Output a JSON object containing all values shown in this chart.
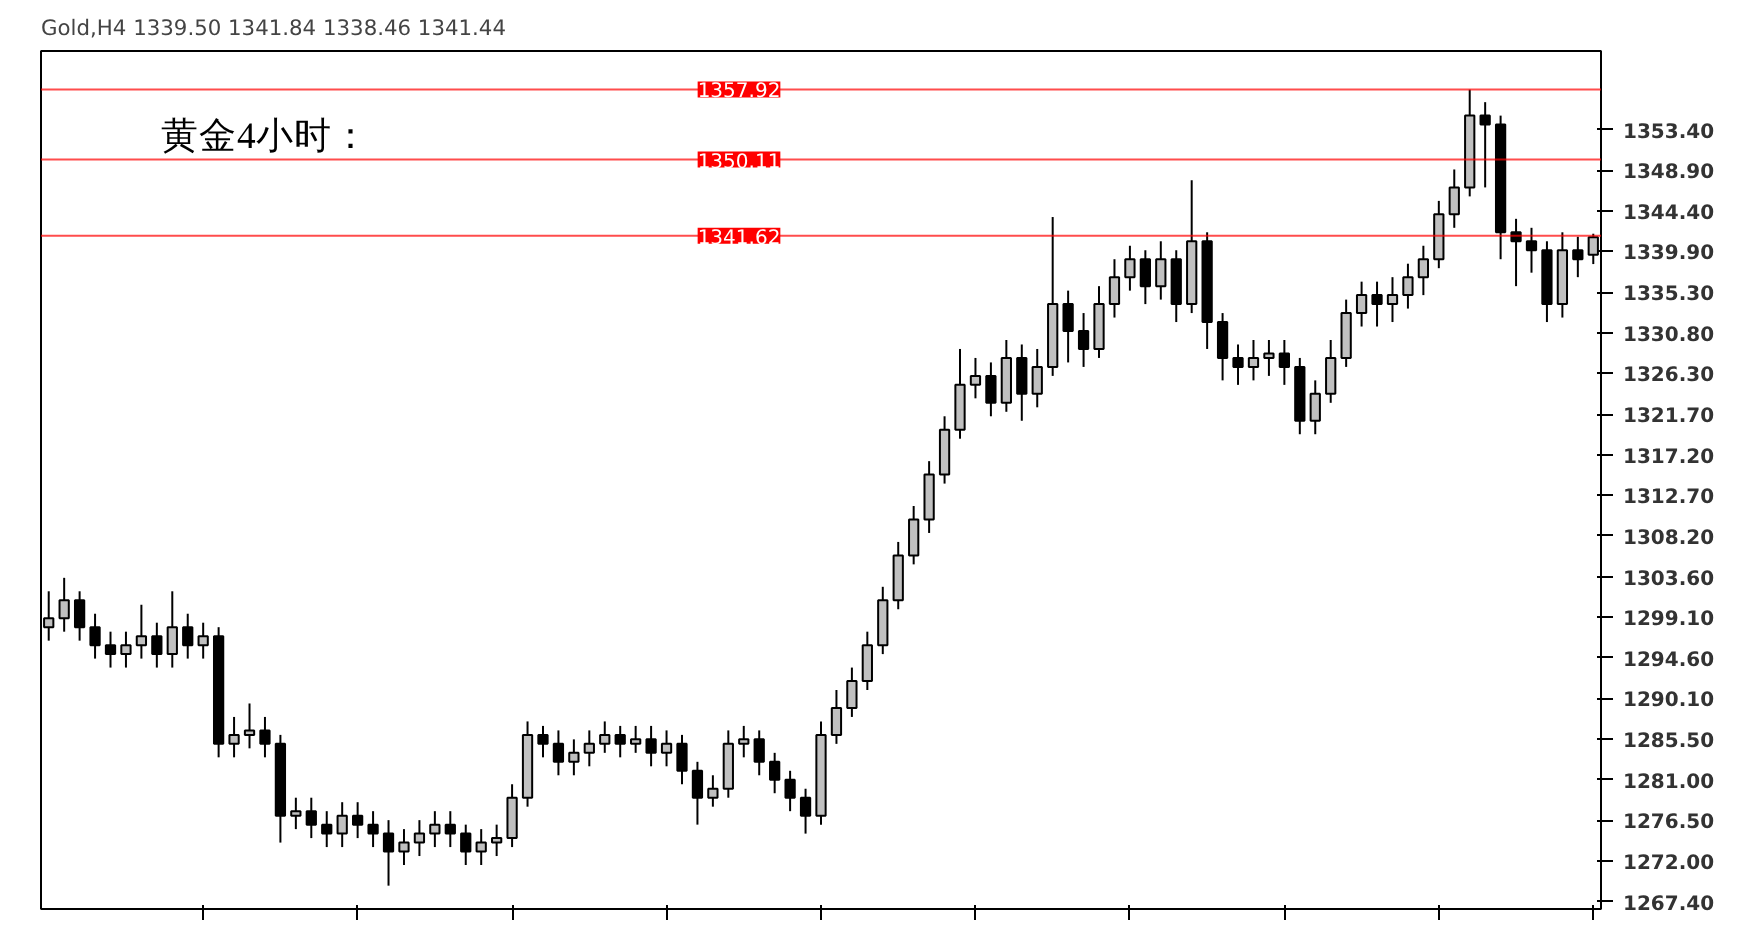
{
  "chart_data": {
    "type": "candlestick",
    "title": "Gold,H4  1339.50 1341.84 1338.46 1341.44",
    "annotations": [
      "黄金4小时："
    ],
    "categories": [
      null,
      null,
      null,
      null,
      null,
      null,
      null,
      null,
      null,
      null,
      null,
      null,
      null,
      null,
      null,
      null,
      null,
      null,
      null,
      null,
      null,
      null,
      null,
      null,
      null,
      null,
      null,
      null,
      null,
      null,
      null,
      null,
      null,
      null,
      null,
      null,
      null,
      null,
      null,
      null,
      null,
      null,
      null,
      null,
      null,
      null,
      null,
      null,
      null,
      null,
      null,
      null,
      null,
      null,
      null,
      null,
      null,
      null,
      null,
      null,
      null,
      null,
      null,
      null,
      null,
      null,
      null,
      null,
      null,
      null,
      null,
      null,
      null,
      null,
      null,
      null,
      null,
      null,
      null,
      null,
      null,
      null,
      null,
      null,
      null,
      null,
      null,
      null,
      null,
      null,
      null,
      null,
      null,
      null,
      null,
      null,
      null,
      null,
      null,
      null,
      null
    ],
    "ohlc": [
      [
        1298,
        1302,
        1296.5,
        1299
      ],
      [
        1299,
        1303.5,
        1297.5,
        1301
      ],
      [
        1301,
        1302,
        1296.5,
        1298
      ],
      [
        1298,
        1299.5,
        1294.5,
        1296
      ],
      [
        1296,
        1297.5,
        1293.5,
        1295
      ],
      [
        1295,
        1297.5,
        1293.5,
        1296
      ],
      [
        1296,
        1300.5,
        1294.5,
        1297
      ],
      [
        1297,
        1298.5,
        1293.5,
        1295
      ],
      [
        1295,
        1302,
        1293.5,
        1298
      ],
      [
        1298,
        1299.5,
        1294.5,
        1296
      ],
      [
        1296,
        1298.5,
        1294.5,
        1297
      ],
      [
        1297,
        1298,
        1283.5,
        1285
      ],
      [
        1285,
        1288,
        1283.5,
        1286
      ],
      [
        1286,
        1289.5,
        1284.5,
        1286.5
      ],
      [
        1286.5,
        1288,
        1283.5,
        1285
      ],
      [
        1285,
        1286,
        1274,
        1277
      ],
      [
        1277,
        1279,
        1275.5,
        1277.5
      ],
      [
        1277.5,
        1279,
        1274.5,
        1276
      ],
      [
        1276,
        1277.5,
        1273.5,
        1275
      ],
      [
        1275,
        1278.5,
        1273.5,
        1277
      ],
      [
        1277,
        1278.5,
        1274.5,
        1276
      ],
      [
        1276,
        1277.5,
        1273.5,
        1275
      ],
      [
        1275,
        1276.5,
        1269.2,
        1273
      ],
      [
        1273,
        1275.5,
        1271.5,
        1274
      ],
      [
        1274,
        1276.5,
        1272.5,
        1275
      ],
      [
        1275,
        1277.5,
        1273.5,
        1276
      ],
      [
        1276,
        1277.5,
        1273.5,
        1275
      ],
      [
        1275,
        1276,
        1271.5,
        1273
      ],
      [
        1273,
        1275.5,
        1271.5,
        1274
      ],
      [
        1274,
        1276,
        1272.5,
        1274.5
      ],
      [
        1274.5,
        1280.5,
        1273.5,
        1279
      ],
      [
        1279,
        1287.5,
        1278,
        1286
      ],
      [
        1286,
        1287,
        1283.5,
        1285
      ],
      [
        1285,
        1286.5,
        1281.5,
        1283
      ],
      [
        1283,
        1285.5,
        1281.5,
        1284
      ],
      [
        1284,
        1286.5,
        1282.5,
        1285
      ],
      [
        1285,
        1287.5,
        1284,
        1286
      ],
      [
        1286,
        1287,
        1283.5,
        1285
      ],
      [
        1285,
        1287,
        1284,
        1285.5
      ],
      [
        1285.5,
        1287,
        1282.5,
        1284
      ],
      [
        1284,
        1286.5,
        1282.5,
        1285
      ],
      [
        1285,
        1286,
        1280.5,
        1282
      ],
      [
        1282,
        1283,
        1276,
        1279
      ],
      [
        1279,
        1281.5,
        1278,
        1280
      ],
      [
        1280,
        1286.5,
        1279,
        1285
      ],
      [
        1285,
        1287,
        1283.5,
        1285.5
      ],
      [
        1285.5,
        1286.5,
        1281.5,
        1283
      ],
      [
        1283,
        1284,
        1279.5,
        1281
      ],
      [
        1281,
        1282,
        1277.5,
        1279
      ],
      [
        1279,
        1280,
        1275,
        1277
      ],
      [
        1277,
        1287.5,
        1276,
        1286
      ],
      [
        1286,
        1291,
        1285,
        1289
      ],
      [
        1289,
        1293.5,
        1288,
        1292
      ],
      [
        1292,
        1297.5,
        1291,
        1296
      ],
      [
        1296,
        1302.5,
        1295,
        1301
      ],
      [
        1301,
        1307.5,
        1300,
        1306
      ],
      [
        1306,
        1311.5,
        1305,
        1310
      ],
      [
        1310,
        1316.5,
        1308.5,
        1315
      ],
      [
        1315,
        1321.5,
        1314,
        1320
      ],
      [
        1320,
        1329,
        1319,
        1325
      ],
      [
        1325,
        1328,
        1323.5,
        1326
      ],
      [
        1326,
        1327.5,
        1321.5,
        1323
      ],
      [
        1323,
        1330,
        1322,
        1328
      ],
      [
        1328,
        1329.5,
        1321,
        1324
      ],
      [
        1324,
        1329,
        1322.5,
        1327
      ],
      [
        1327,
        1343.7,
        1326,
        1334
      ],
      [
        1334,
        1335.5,
        1327.5,
        1331
      ],
      [
        1331,
        1333,
        1327,
        1329
      ],
      [
        1329,
        1336,
        1328,
        1334
      ],
      [
        1334,
        1339,
        1332.5,
        1337
      ],
      [
        1337,
        1340.5,
        1335.5,
        1339
      ],
      [
        1339,
        1340,
        1334,
        1336
      ],
      [
        1336,
        1341,
        1334.5,
        1339
      ],
      [
        1339,
        1340,
        1332,
        1334
      ],
      [
        1334,
        1347.8,
        1333,
        1341
      ],
      [
        1341,
        1342,
        1329,
        1332
      ],
      [
        1332,
        1333,
        1325.5,
        1328
      ],
      [
        1328,
        1329.5,
        1325,
        1327
      ],
      [
        1327,
        1330,
        1325.5,
        1328
      ],
      [
        1328,
        1330,
        1326,
        1328.5
      ],
      [
        1328.5,
        1330,
        1325,
        1327
      ],
      [
        1327,
        1328,
        1319.5,
        1321
      ],
      [
        1321,
        1325.5,
        1319.5,
        1324
      ],
      [
        1324,
        1330,
        1323,
        1328
      ],
      [
        1328,
        1334.5,
        1327,
        1333
      ],
      [
        1333,
        1336.5,
        1331.5,
        1335
      ],
      [
        1335,
        1336.5,
        1331.5,
        1334
      ],
      [
        1334,
        1337,
        1332,
        1335
      ],
      [
        1335,
        1338.5,
        1333.5,
        1337
      ],
      [
        1337,
        1340.5,
        1335,
        1339
      ],
      [
        1339,
        1345.5,
        1338,
        1344
      ],
      [
        1344,
        1349,
        1342.5,
        1347
      ],
      [
        1347,
        1357.9,
        1346,
        1355
      ],
      [
        1355,
        1356.5,
        1347,
        1354
      ],
      [
        1354,
        1355,
        1339,
        1342
      ],
      [
        1342,
        1343.5,
        1336,
        1341
      ],
      [
        1341,
        1342.5,
        1337.5,
        1340
      ],
      [
        1340,
        1341,
        1332,
        1334
      ],
      [
        1334,
        1342,
        1332.5,
        1340
      ],
      [
        1340,
        1341.5,
        1337,
        1339
      ],
      [
        1339.5,
        1341.84,
        1338.46,
        1341.44
      ]
    ],
    "color": "#000000",
    "ylim": [
      1266.6,
      1362.2
    ],
    "yticks": [
      {
        "value": 1267.4,
        "label": "1267.40"
      },
      {
        "value": 1272.0,
        "label": "1272.00"
      },
      {
        "value": 1276.5,
        "label": "1276.50"
      },
      {
        "value": 1281.0,
        "label": "1281.00"
      },
      {
        "value": 1285.5,
        "label": "1285.50"
      },
      {
        "value": 1290.1,
        "label": "1290.10"
      },
      {
        "value": 1294.6,
        "label": "1294.60"
      },
      {
        "value": 1299.1,
        "label": "1299.10"
      },
      {
        "value": 1303.6,
        "label": "1303.60"
      },
      {
        "value": 1308.2,
        "label": "1308.20"
      },
      {
        "value": 1312.7,
        "label": "1312.70"
      },
      {
        "value": 1317.2,
        "label": "1317.20"
      },
      {
        "value": 1321.7,
        "label": "1321.70"
      },
      {
        "value": 1326.3,
        "label": "1326.30"
      },
      {
        "value": 1330.8,
        "label": "1330.80"
      },
      {
        "value": 1335.3,
        "label": "1335.30"
      },
      {
        "value": 1339.9,
        "label": "1339.90"
      },
      {
        "value": 1344.4,
        "label": "1344.40"
      },
      {
        "value": 1348.9,
        "label": "1348.90"
      },
      {
        "value": 1353.4,
        "label": "1353.40"
      }
    ],
    "ref_lines": [
      {
        "axis": "y",
        "value": 1357.92,
        "label": "1357.92",
        "color": "#ff0000"
      },
      {
        "axis": "y",
        "value": 1350.11,
        "label": "1350.11",
        "color": "#ff0000"
      },
      {
        "axis": "y",
        "value": 1341.62,
        "label": "1341.62",
        "color": "#ff0000"
      }
    ],
    "tick_labels": "y",
    "grid": false
  }
}
